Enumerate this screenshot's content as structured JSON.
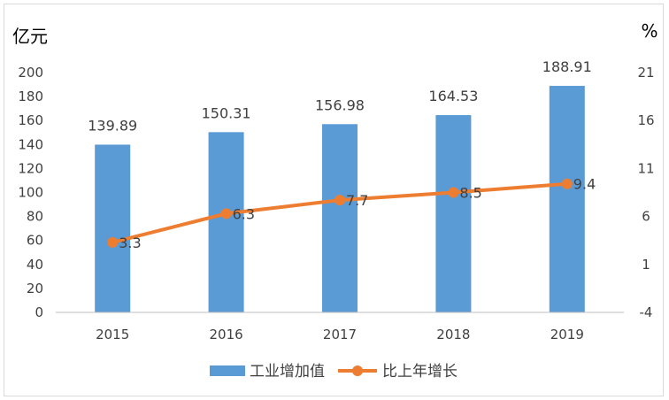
{
  "chart_data": {
    "type": "bar",
    "categories": [
      "2015",
      "2016",
      "2017",
      "2018",
      "2019"
    ],
    "series": [
      {
        "name": "工业增加值",
        "type": "bar",
        "axis": "left",
        "values": [
          139.89,
          150.31,
          156.98,
          164.53,
          188.91
        ],
        "labels": [
          "139.89",
          "150.31",
          "156.98",
          "164.53",
          "188.91"
        ],
        "color": "#5b9bd5"
      },
      {
        "name": "比上年增长",
        "type": "line",
        "axis": "right",
        "values": [
          3.3,
          6.3,
          7.7,
          8.5,
          9.4
        ],
        "labels": [
          "3.3",
          "6.3",
          "7.7",
          "8.5",
          "9.4"
        ],
        "color": "#ed7d31"
      }
    ],
    "y_left": {
      "unit": "亿元",
      "range": [
        0,
        200
      ],
      "ticks": [
        "0",
        "20",
        "40",
        "60",
        "80",
        "100",
        "120",
        "140",
        "160",
        "180",
        "200"
      ]
    },
    "y_right": {
      "unit": "%",
      "range": [
        -4,
        21
      ],
      "ticks": [
        "-4",
        "1",
        "6",
        "11",
        "16",
        "21"
      ]
    },
    "grid": false,
    "legend_position": "bottom"
  }
}
